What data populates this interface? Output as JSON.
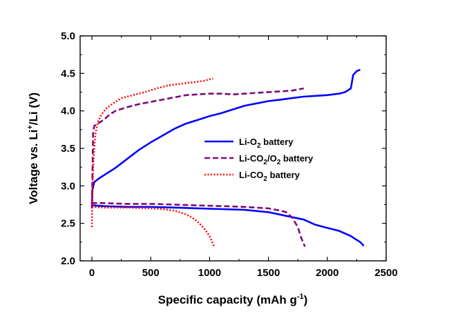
{
  "chart_data": {
    "type": "line",
    "xlabel": {
      "main": "Specific capacity (mAh g",
      "sup": "-1",
      "tail": ")"
    },
    "ylabel": {
      "main": "Voltage vs. Li",
      "sup": "+",
      "tail": "/Li (V)"
    },
    "xlim": [
      -100,
      2500
    ],
    "ylim": [
      2.0,
      5.0
    ],
    "x_ticks": [
      0,
      500,
      1000,
      1500,
      2000,
      2500
    ],
    "y_ticks": [
      2.0,
      2.5,
      3.0,
      3.5,
      4.0,
      4.5,
      5.0
    ],
    "grid": false,
    "legend_position": "center-right",
    "series": [
      {
        "legend_parts": [
          "Li-O",
          "2",
          " battery"
        ],
        "color": "#0000ff",
        "style": "solid",
        "charge": [
          [
            0,
            2.7
          ],
          [
            5,
            2.95
          ],
          [
            20,
            3.05
          ],
          [
            60,
            3.1
          ],
          [
            100,
            3.14
          ],
          [
            200,
            3.24
          ],
          [
            300,
            3.36
          ],
          [
            400,
            3.48
          ],
          [
            500,
            3.58
          ],
          [
            600,
            3.67
          ],
          [
            700,
            3.76
          ],
          [
            800,
            3.83
          ],
          [
            900,
            3.88
          ],
          [
            1000,
            3.93
          ],
          [
            1100,
            3.97
          ],
          [
            1200,
            4.02
          ],
          [
            1300,
            4.07
          ],
          [
            1400,
            4.1
          ],
          [
            1500,
            4.13
          ],
          [
            1600,
            4.15
          ],
          [
            1700,
            4.17
          ],
          [
            1800,
            4.19
          ],
          [
            1900,
            4.2
          ],
          [
            2000,
            4.21
          ],
          [
            2100,
            4.23
          ],
          [
            2150,
            4.25
          ],
          [
            2200,
            4.3
          ],
          [
            2220,
            4.48
          ],
          [
            2250,
            4.53
          ],
          [
            2280,
            4.55
          ]
        ],
        "discharge": [
          [
            0,
            2.75
          ],
          [
            5,
            2.74
          ],
          [
            100,
            2.73
          ],
          [
            300,
            2.72
          ],
          [
            500,
            2.72
          ],
          [
            700,
            2.71
          ],
          [
            900,
            2.7
          ],
          [
            1100,
            2.69
          ],
          [
            1300,
            2.68
          ],
          [
            1500,
            2.65
          ],
          [
            1650,
            2.6
          ],
          [
            1800,
            2.55
          ],
          [
            1900,
            2.48
          ],
          [
            2000,
            2.44
          ],
          [
            2100,
            2.4
          ],
          [
            2200,
            2.33
          ],
          [
            2250,
            2.28
          ],
          [
            2280,
            2.25
          ],
          [
            2310,
            2.2
          ]
        ]
      },
      {
        "legend_parts": [
          "Li-CO",
          "2",
          "/O",
          "2",
          " battery"
        ],
        "color": "#7a0a7a",
        "style": "dashed",
        "charge": [
          [
            0,
            2.76
          ],
          [
            5,
            3.2
          ],
          [
            10,
            3.7
          ],
          [
            20,
            3.8
          ],
          [
            60,
            3.84
          ],
          [
            100,
            3.88
          ],
          [
            150,
            3.95
          ],
          [
            200,
            4.0
          ],
          [
            300,
            4.05
          ],
          [
            400,
            4.09
          ],
          [
            500,
            4.12
          ],
          [
            600,
            4.15
          ],
          [
            700,
            4.18
          ],
          [
            800,
            4.21
          ],
          [
            900,
            4.22
          ],
          [
            1000,
            4.23
          ],
          [
            1100,
            4.23
          ],
          [
            1200,
            4.22
          ],
          [
            1300,
            4.23
          ],
          [
            1400,
            4.24
          ],
          [
            1500,
            4.25
          ],
          [
            1600,
            4.26
          ],
          [
            1700,
            4.27
          ],
          [
            1800,
            4.3
          ]
        ],
        "discharge": [
          [
            0,
            2.78
          ],
          [
            5,
            2.77
          ],
          [
            100,
            2.77
          ],
          [
            300,
            2.76
          ],
          [
            500,
            2.76
          ],
          [
            700,
            2.75
          ],
          [
            900,
            2.74
          ],
          [
            1100,
            2.73
          ],
          [
            1300,
            2.72
          ],
          [
            1500,
            2.7
          ],
          [
            1600,
            2.67
          ],
          [
            1650,
            2.65
          ],
          [
            1700,
            2.58
          ],
          [
            1750,
            2.45
          ],
          [
            1780,
            2.3
          ],
          [
            1810,
            2.19
          ]
        ]
      },
      {
        "legend_parts": [
          "Li-CO",
          "2",
          " battery"
        ],
        "color": "#ff0000",
        "style": "dotted",
        "charge": [
          [
            0,
            2.45
          ],
          [
            5,
            3.0
          ],
          [
            15,
            3.4
          ],
          [
            30,
            3.7
          ],
          [
            50,
            3.85
          ],
          [
            80,
            3.95
          ],
          [
            120,
            4.03
          ],
          [
            180,
            4.1
          ],
          [
            250,
            4.17
          ],
          [
            350,
            4.21
          ],
          [
            450,
            4.25
          ],
          [
            550,
            4.3
          ],
          [
            650,
            4.34
          ],
          [
            750,
            4.36
          ],
          [
            850,
            4.38
          ],
          [
            950,
            4.4
          ],
          [
            1000,
            4.42
          ],
          [
            1030,
            4.43
          ]
        ],
        "discharge": [
          [
            0,
            2.72
          ],
          [
            5,
            2.72
          ],
          [
            100,
            2.71
          ],
          [
            300,
            2.71
          ],
          [
            500,
            2.7
          ],
          [
            600,
            2.69
          ],
          [
            700,
            2.67
          ],
          [
            800,
            2.62
          ],
          [
            850,
            2.58
          ],
          [
            900,
            2.52
          ],
          [
            950,
            2.44
          ],
          [
            1000,
            2.33
          ],
          [
            1040,
            2.19
          ]
        ]
      }
    ]
  }
}
